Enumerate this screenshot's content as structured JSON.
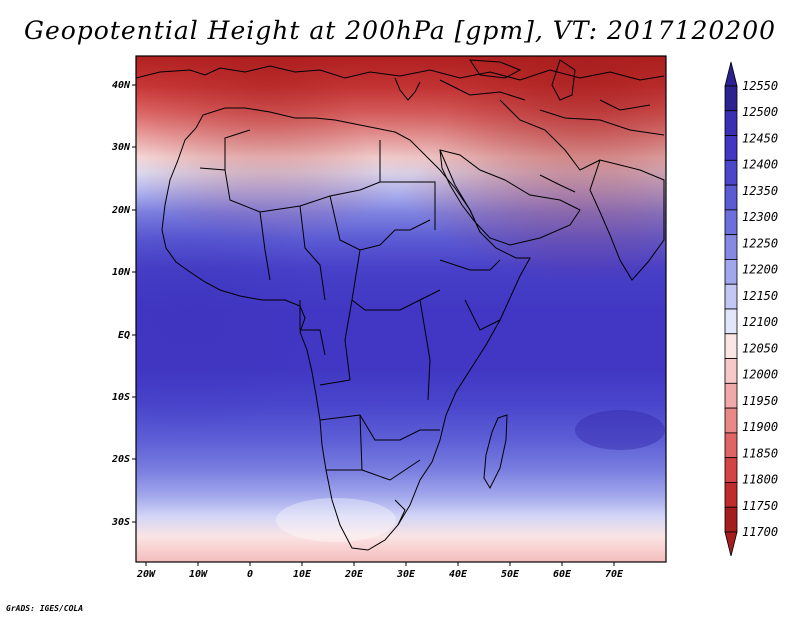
{
  "title": "Geopotential Height at 200hPa [gpm], VT: 2017120200",
  "credit": "GrADS: IGES/COLA",
  "map": {
    "lat_labels": [
      "40N",
      "30N",
      "20N",
      "10N",
      "EQ",
      "10S",
      "20S",
      "30S"
    ],
    "lon_labels": [
      "20W",
      "10W",
      "0",
      "10E",
      "20E",
      "30E",
      "40E",
      "50E",
      "60E",
      "70E"
    ],
    "lon_range": [
      -22,
      80
    ],
    "lat_range": [
      -37,
      45
    ]
  },
  "colorbar": {
    "levels": [
      "12550",
      "12500",
      "12450",
      "12400",
      "12350",
      "12300",
      "12250",
      "12200",
      "12150",
      "12100",
      "12050",
      "12000",
      "11950",
      "11900",
      "11850",
      "11800",
      "11750",
      "11700"
    ],
    "colors": [
      "#2c2191",
      "#3a2fb4",
      "#4137c4",
      "#4c46cc",
      "#5b5bd4",
      "#6d70dc",
      "#8689e4",
      "#a1a7ec",
      "#c2c7f4",
      "#e3e6fa",
      "#fbe5e5",
      "#f7c8c8",
      "#f1a8a8",
      "#ea8888",
      "#e06464",
      "#d44444",
      "#c22b2b",
      "#a61d1d"
    ]
  }
}
